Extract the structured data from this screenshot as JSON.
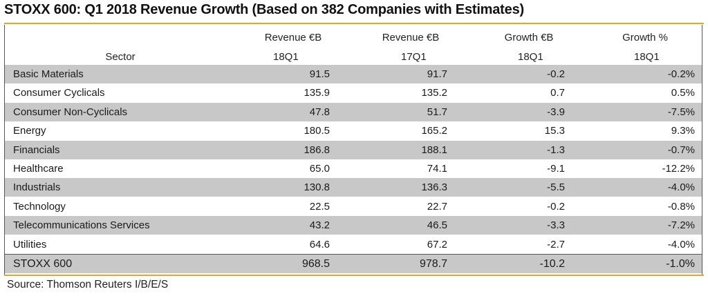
{
  "chart_data": {
    "type": "table",
    "title": "STOXX 600: Q1 2018 Revenue Growth (Based on 382 Companies with Estimates)",
    "columns": [
      {
        "key": "sector",
        "line1": "",
        "line2": "Sector"
      },
      {
        "key": "rev18",
        "line1": "Revenue €B",
        "line2": "18Q1"
      },
      {
        "key": "rev17",
        "line1": "Revenue €B",
        "line2": "17Q1"
      },
      {
        "key": "growth_eur",
        "line1": "Growth €B",
        "line2": "18Q1"
      },
      {
        "key": "growth_pct",
        "line1": "Growth %",
        "line2": "18Q1"
      }
    ],
    "rows": [
      {
        "sector": "Basic Materials",
        "rev18": "91.5",
        "rev17": "91.7",
        "growth_eur": "-0.2",
        "growth_pct": "-0.2%"
      },
      {
        "sector": "Consumer Cyclicals",
        "rev18": "135.9",
        "rev17": "135.2",
        "growth_eur": "0.7",
        "growth_pct": "0.5%"
      },
      {
        "sector": "Consumer Non-Cyclicals",
        "rev18": "47.8",
        "rev17": "51.7",
        "growth_eur": "-3.9",
        "growth_pct": "-7.5%"
      },
      {
        "sector": "Energy",
        "rev18": "180.5",
        "rev17": "165.2",
        "growth_eur": "15.3",
        "growth_pct": "9.3%"
      },
      {
        "sector": "Financials",
        "rev18": "186.8",
        "rev17": "188.1",
        "growth_eur": "-1.3",
        "growth_pct": "-0.7%"
      },
      {
        "sector": "Healthcare",
        "rev18": "65.0",
        "rev17": "74.1",
        "growth_eur": "-9.1",
        "growth_pct": "-12.2%"
      },
      {
        "sector": "Industrials",
        "rev18": "130.8",
        "rev17": "136.3",
        "growth_eur": "-5.5",
        "growth_pct": "-4.0%"
      },
      {
        "sector": "Technology",
        "rev18": "22.5",
        "rev17": "22.7",
        "growth_eur": "-0.2",
        "growth_pct": "-0.8%"
      },
      {
        "sector": "Telecommunications Services",
        "rev18": "43.2",
        "rev17": "46.5",
        "growth_eur": "-3.3",
        "growth_pct": "-7.2%"
      },
      {
        "sector": "Utilities",
        "rev18": "64.6",
        "rev17": "67.2",
        "growth_eur": "-2.7",
        "growth_pct": "-4.0%"
      }
    ],
    "total": {
      "sector": "STOXX 600",
      "rev18": "968.5",
      "rev17": "978.7",
      "growth_eur": "-10.2",
      "growth_pct": "-1.0%"
    },
    "source": "Source: Thomson Reuters I/B/E/S",
    "colors": {
      "accent_rule": "#f4a21e",
      "shaded_row": "#c8c8c8"
    }
  }
}
